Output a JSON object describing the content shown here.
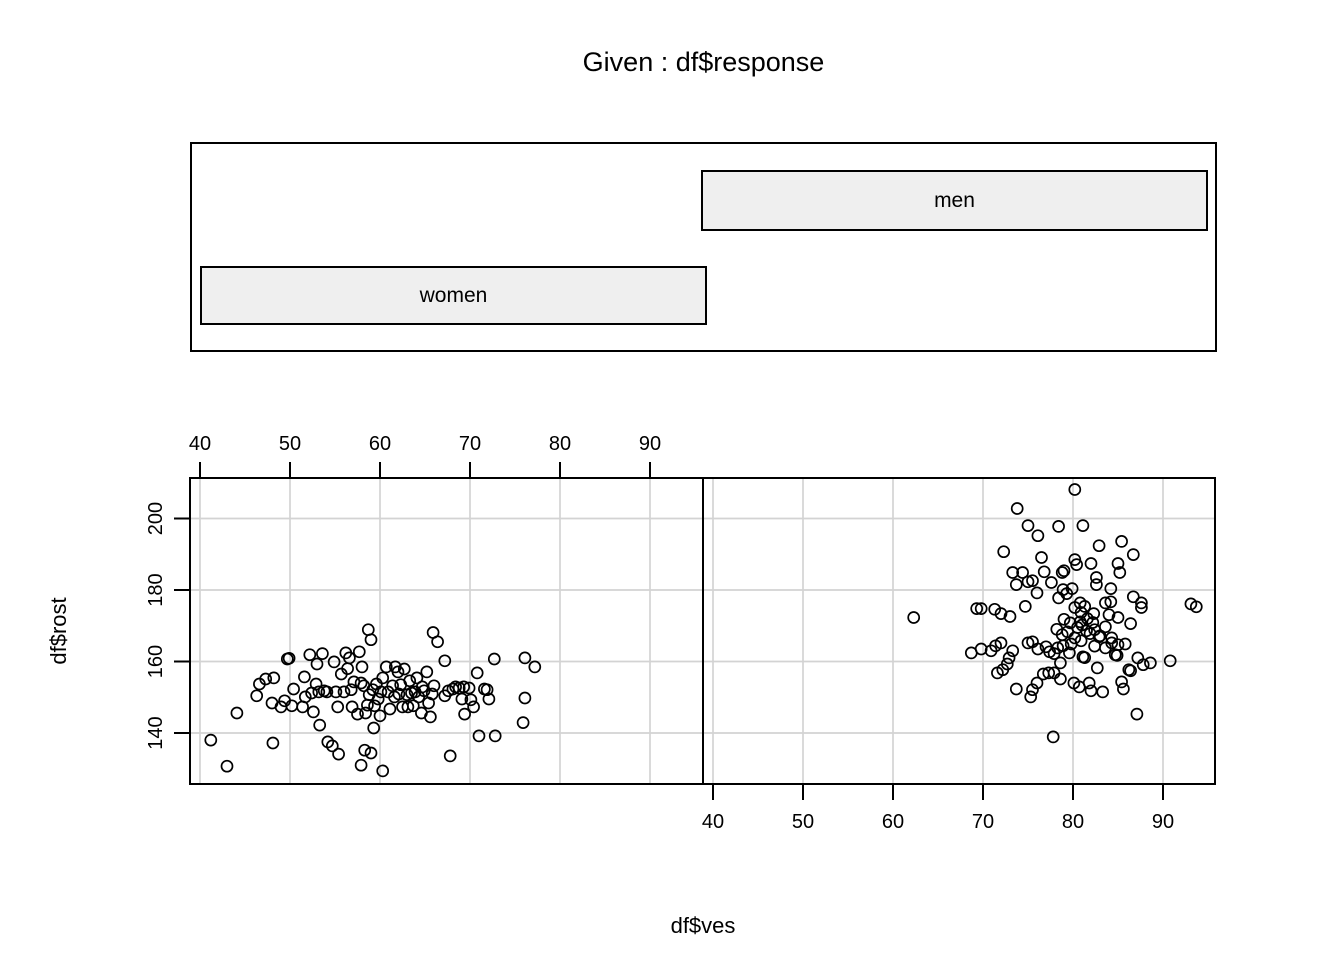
{
  "title": "Given : df$response",
  "given_panel": {
    "labels": [
      "men",
      "women"
    ]
  },
  "colors": {
    "background": "#ffffff",
    "border": "#000000",
    "grid": "#d3d3d3",
    "point_stroke": "#000000",
    "bar_fill": "#efefef"
  },
  "chart_data": {
    "type": "scatter",
    "title": "Given : df$response",
    "xlabel": "df$ves",
    "ylabel": "df$rost",
    "grid": true,
    "point_style": "open-circle",
    "x_ticks": [
      40,
      50,
      60,
      70,
      80,
      90
    ],
    "y_ticks": [
      140,
      160,
      180,
      200
    ],
    "x_range_per_panel": [
      38.9,
      95.8
    ],
    "y_range": [
      125.5,
      211.5
    ],
    "panels": [
      {
        "condition": "women",
        "position": "left",
        "x_axis_side": "top",
        "points": [
          [
            41.2,
            138.0
          ],
          [
            43.0,
            130.7
          ],
          [
            44.1,
            145.6
          ],
          [
            46.3,
            150.4
          ],
          [
            46.6,
            153.7
          ],
          [
            47.3,
            155.1
          ],
          [
            48.2,
            155.4
          ],
          [
            48.0,
            148.4
          ],
          [
            48.1,
            137.2
          ],
          [
            49.0,
            147.3
          ],
          [
            49.4,
            149.0
          ],
          [
            49.7,
            160.7
          ],
          [
            49.9,
            160.9
          ],
          [
            50.2,
            147.6
          ],
          [
            50.4,
            152.3
          ],
          [
            51.4,
            147.3
          ],
          [
            51.6,
            155.7
          ],
          [
            51.7,
            150.1
          ],
          [
            52.2,
            161.9
          ],
          [
            52.4,
            151.2
          ],
          [
            52.6,
            145.9
          ],
          [
            52.9,
            153.7
          ],
          [
            53.0,
            159.3
          ],
          [
            53.2,
            151.5
          ],
          [
            53.3,
            142.2
          ],
          [
            53.6,
            162.2
          ],
          [
            53.8,
            151.8
          ],
          [
            54.1,
            151.5
          ],
          [
            54.2,
            137.5
          ],
          [
            54.7,
            136.4
          ],
          [
            54.9,
            159.9
          ],
          [
            55.1,
            151.5
          ],
          [
            55.3,
            147.3
          ],
          [
            55.4,
            134.1
          ],
          [
            55.7,
            156.5
          ],
          [
            56.0,
            151.5
          ],
          [
            56.2,
            162.4
          ],
          [
            56.4,
            158.0
          ],
          [
            56.6,
            161.0
          ],
          [
            56.8,
            152.1
          ],
          [
            56.9,
            147.3
          ],
          [
            57.1,
            154.3
          ],
          [
            57.5,
            145.3
          ],
          [
            57.7,
            162.7
          ],
          [
            57.9,
            131.0
          ],
          [
            57.9,
            154.0
          ],
          [
            58.0,
            158.5
          ],
          [
            58.2,
            153.2
          ],
          [
            58.4,
            145.6
          ],
          [
            58.6,
            147.8
          ],
          [
            58.8,
            150.7
          ],
          [
            58.7,
            168.9
          ],
          [
            59.0,
            166.1
          ],
          [
            59.2,
            152.1
          ],
          [
            59.3,
            141.4
          ],
          [
            59.4,
            147.6
          ],
          [
            59.6,
            153.7
          ],
          [
            59.8,
            149.5
          ],
          [
            60.0,
            144.8
          ],
          [
            60.1,
            151.5
          ],
          [
            60.3,
            155.4
          ],
          [
            58.3,
            135.2
          ],
          [
            59.0,
            134.4
          ],
          [
            60.3,
            129.4
          ],
          [
            60.7,
            158.5
          ],
          [
            60.9,
            151.5
          ],
          [
            61.1,
            146.7
          ],
          [
            61.4,
            153.2
          ],
          [
            61.6,
            150.1
          ],
          [
            61.7,
            158.5
          ],
          [
            62.0,
            157.1
          ],
          [
            62.1,
            150.9
          ],
          [
            62.3,
            153.5
          ],
          [
            62.5,
            147.3
          ],
          [
            62.7,
            157.9
          ],
          [
            63.0,
            150.7
          ],
          [
            63.1,
            147.3
          ],
          [
            63.3,
            154.6
          ],
          [
            63.5,
            151.2
          ],
          [
            63.7,
            147.6
          ],
          [
            63.9,
            151.5
          ],
          [
            64.1,
            155.4
          ],
          [
            64.3,
            150.1
          ],
          [
            64.6,
            145.6
          ],
          [
            64.7,
            152.9
          ],
          [
            64.9,
            151.8
          ],
          [
            65.2,
            157.1
          ],
          [
            65.4,
            148.4
          ],
          [
            65.6,
            144.5
          ],
          [
            65.8,
            150.9
          ],
          [
            65.9,
            168.1
          ],
          [
            66.4,
            165.5
          ],
          [
            67.2,
            160.2
          ],
          [
            66.0,
            153.2
          ],
          [
            67.2,
            150.4
          ],
          [
            67.6,
            151.8
          ],
          [
            68.1,
            152.3
          ],
          [
            68.4,
            152.9
          ],
          [
            68.8,
            152.6
          ],
          [
            69.1,
            149.5
          ],
          [
            69.3,
            152.9
          ],
          [
            69.4,
            145.3
          ],
          [
            69.9,
            152.6
          ],
          [
            70.1,
            149.3
          ],
          [
            70.4,
            147.3
          ],
          [
            70.8,
            156.8
          ],
          [
            71.0,
            139.2
          ],
          [
            71.6,
            152.3
          ],
          [
            71.9,
            152.1
          ],
          [
            72.1,
            149.5
          ],
          [
            72.7,
            160.7
          ],
          [
            72.8,
            139.2
          ],
          [
            67.8,
            133.6
          ],
          [
            76.1,
            161.0
          ],
          [
            77.2,
            158.5
          ],
          [
            76.1,
            149.8
          ],
          [
            75.9,
            142.9
          ]
        ]
      },
      {
        "condition": "men",
        "position": "right",
        "x_axis_side": "bottom",
        "points": [
          [
            73.8,
            202.8
          ],
          [
            75.0,
            198.0
          ],
          [
            76.1,
            195.2
          ],
          [
            78.4,
            197.8
          ],
          [
            72.3,
            190.7
          ],
          [
            76.5,
            189.1
          ],
          [
            76.8,
            185.1
          ],
          [
            75.0,
            182.3
          ],
          [
            73.3,
            184.9
          ],
          [
            73.7,
            181.5
          ],
          [
            74.4,
            184.9
          ],
          [
            75.5,
            182.6
          ],
          [
            77.6,
            182.1
          ],
          [
            78.4,
            177.8
          ],
          [
            76.0,
            179.2
          ],
          [
            71.3,
            174.6
          ],
          [
            69.3,
            174.8
          ],
          [
            69.8,
            174.8
          ],
          [
            72.0,
            173.4
          ],
          [
            73.0,
            172.6
          ],
          [
            74.7,
            175.4
          ],
          [
            62.3,
            172.3
          ],
          [
            80.2,
            208.1
          ],
          [
            81.1,
            198.0
          ],
          [
            82.9,
            192.4
          ],
          [
            85.4,
            193.6
          ],
          [
            86.7,
            189.9
          ],
          [
            82.0,
            187.4
          ],
          [
            80.2,
            188.5
          ],
          [
            80.4,
            187.1
          ],
          [
            79.0,
            185.4
          ],
          [
            78.8,
            184.9
          ],
          [
            85.0,
            187.4
          ],
          [
            85.2,
            184.9
          ],
          [
            82.6,
            183.5
          ],
          [
            82.6,
            181.5
          ],
          [
            84.2,
            180.4
          ],
          [
            79.9,
            180.4
          ],
          [
            79.3,
            179.0
          ],
          [
            80.8,
            176.4
          ],
          [
            81.3,
            175.4
          ],
          [
            80.2,
            175.1
          ],
          [
            80.9,
            173.7
          ],
          [
            82.3,
            173.4
          ],
          [
            83.6,
            176.4
          ],
          [
            84.2,
            176.7
          ],
          [
            86.7,
            178.1
          ],
          [
            87.6,
            176.4
          ],
          [
            87.6,
            175.1
          ],
          [
            93.1,
            176.1
          ],
          [
            93.7,
            175.3
          ],
          [
            78.9,
            180.1
          ],
          [
            84.0,
            173.1
          ],
          [
            85.0,
            172.3
          ],
          [
            81.6,
            172.0
          ],
          [
            80.8,
            171.1
          ],
          [
            79.7,
            170.8
          ],
          [
            83.6,
            169.7
          ],
          [
            82.4,
            168.9
          ],
          [
            86.4,
            170.6
          ],
          [
            78.8,
            167.5
          ],
          [
            80.2,
            166.6
          ],
          [
            82.9,
            166.9
          ],
          [
            84.3,
            166.6
          ],
          [
            68.7,
            162.4
          ],
          [
            69.8,
            163.5
          ],
          [
            70.9,
            163.0
          ],
          [
            71.4,
            164.4
          ],
          [
            72.0,
            165.2
          ],
          [
            72.9,
            161.0
          ],
          [
            73.3,
            163.0
          ],
          [
            72.2,
            157.7
          ],
          [
            71.6,
            156.8
          ],
          [
            72.7,
            159.3
          ],
          [
            75.0,
            165.2
          ],
          [
            76.1,
            163.5
          ],
          [
            75.5,
            165.5
          ],
          [
            77.0,
            164.1
          ],
          [
            77.4,
            162.7
          ],
          [
            77.9,
            162.2
          ],
          [
            78.3,
            163.8
          ],
          [
            73.7,
            152.3
          ],
          [
            75.3,
            150.1
          ],
          [
            75.5,
            152.1
          ],
          [
            76.0,
            154.0
          ],
          [
            76.7,
            156.5
          ],
          [
            77.3,
            156.8
          ],
          [
            77.9,
            156.8
          ],
          [
            77.8,
            138.9
          ],
          [
            78.9,
            164.4
          ],
          [
            79.6,
            162.4
          ],
          [
            78.6,
            159.6
          ],
          [
            81.1,
            161.3
          ],
          [
            81.3,
            161.1
          ],
          [
            83.6,
            163.8
          ],
          [
            84.3,
            165.2
          ],
          [
            85.0,
            164.7
          ],
          [
            84.7,
            161.9
          ],
          [
            84.9,
            161.7
          ],
          [
            85.8,
            164.9
          ],
          [
            82.7,
            158.2
          ],
          [
            87.2,
            161.0
          ],
          [
            87.8,
            159.1
          ],
          [
            88.6,
            159.6
          ],
          [
            90.8,
            160.2
          ],
          [
            78.6,
            155.1
          ],
          [
            80.1,
            154.0
          ],
          [
            80.7,
            152.9
          ],
          [
            81.8,
            154.0
          ],
          [
            82.0,
            151.8
          ],
          [
            83.3,
            151.5
          ],
          [
            85.4,
            154.3
          ],
          [
            85.6,
            152.3
          ],
          [
            86.4,
            157.4
          ],
          [
            86.2,
            157.7
          ],
          [
            87.1,
            145.3
          ],
          [
            79.4,
            168.3
          ],
          [
            80.5,
            169.5
          ],
          [
            81.9,
            167.8
          ],
          [
            79.0,
            171.8
          ],
          [
            81.0,
            170.2
          ],
          [
            82.2,
            170.9
          ],
          [
            79.8,
            164.9
          ],
          [
            80.9,
            165.8
          ],
          [
            82.4,
            164.3
          ],
          [
            83.0,
            167.2
          ],
          [
            78.2,
            169.0
          ],
          [
            81.5,
            168.6
          ]
        ]
      }
    ]
  }
}
